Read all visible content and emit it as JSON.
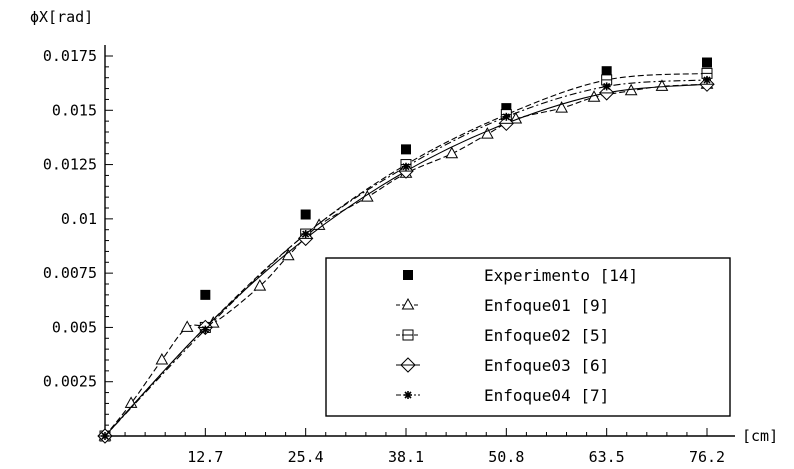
{
  "chart_data": {
    "type": "line",
    "title": "",
    "ylabel": "ϕX[rad]",
    "xlabel": "[cm]",
    "xlim": [
      0,
      76.2
    ],
    "ylim": [
      0,
      0.0175
    ],
    "x_ticks": [
      12.7,
      25.4,
      38.1,
      50.8,
      63.5,
      76.2
    ],
    "x_tick_labels": [
      "12.7",
      "25.4",
      "38.1",
      "50.8",
      "63.5",
      "76.2"
    ],
    "y_ticks": [
      0.0025,
      0.005,
      0.0075,
      0.01,
      0.0125,
      0.015,
      0.0175
    ],
    "y_tick_labels": [
      "0.0025",
      "0.005",
      "0.0075",
      "0.01",
      "0.0125",
      "0.015",
      "0.0175"
    ],
    "grid": false,
    "legend_position": "bottom-right",
    "series": [
      {
        "name": "Experimento [14]",
        "marker": "filled-square",
        "line": "none",
        "x": [
          0,
          12.7,
          25.4,
          38.1,
          50.8,
          63.5,
          76.2
        ],
        "y": [
          0,
          0.0065,
          0.0102,
          0.0132,
          0.0151,
          0.0168,
          0.0172
        ]
      },
      {
        "name": "Enfoque01 [9]",
        "marker": "triangle",
        "line": "dashed",
        "x": [
          0,
          3.3,
          7.2,
          10.4,
          13.7,
          19.6,
          23.2,
          27.1,
          33.2,
          38.1,
          43.9,
          48.4,
          52.0,
          57.8,
          61.9,
          66.6,
          70.5,
          76.2
        ],
        "y": [
          0,
          0.0015,
          0.0035,
          0.005,
          0.0052,
          0.0069,
          0.0083,
          0.0097,
          0.011,
          0.0121,
          0.013,
          0.0139,
          0.0146,
          0.0151,
          0.0156,
          0.0159,
          0.0161,
          0.0162
        ]
      },
      {
        "name": "Enfoque02 [5]",
        "marker": "boxed-plus",
        "line": "dashed",
        "x": [
          0,
          12.7,
          25.4,
          38.1,
          50.8,
          63.5,
          76.2
        ],
        "y": [
          0,
          0.005,
          0.0093,
          0.0125,
          0.0148,
          0.0164,
          0.0167
        ]
      },
      {
        "name": "Enfoque03 [6]",
        "marker": "diamond",
        "line": "solid",
        "x": [
          0,
          12.7,
          25.4,
          38.1,
          50.8,
          63.5,
          76.2
        ],
        "y": [
          0,
          0.005,
          0.0091,
          0.0122,
          0.0144,
          0.0158,
          0.0162
        ]
      },
      {
        "name": "Enfoque04 [7]",
        "marker": "star",
        "line": "dashdot",
        "x": [
          0,
          12.7,
          25.4,
          38.1,
          50.8,
          63.5,
          76.2
        ],
        "y": [
          0,
          0.0049,
          0.0093,
          0.0124,
          0.0147,
          0.0161,
          0.0164
        ]
      }
    ]
  }
}
